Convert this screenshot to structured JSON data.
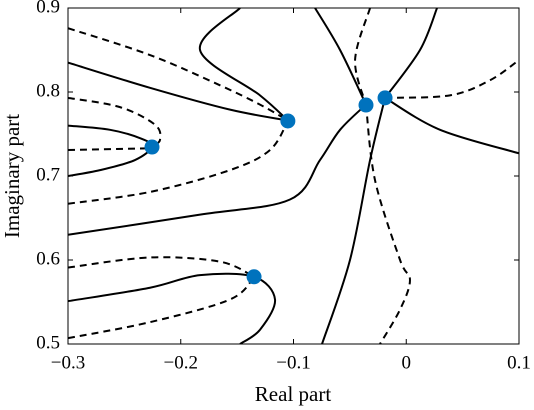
{
  "chart_data": {
    "type": "contour",
    "x_label": "Real part",
    "y_label": "Imaginary part",
    "xlim": [
      -0.3,
      0.1
    ],
    "ylim": [
      0.5,
      0.9
    ],
    "xticks": [
      {
        "value": -0.3,
        "label": "−0.3"
      },
      {
        "value": -0.2,
        "label": "−0.2"
      },
      {
        "value": -0.1,
        "label": "−0.1"
      },
      0,
      0.1
    ],
    "yticks": [
      0.5,
      0.6,
      0.7,
      0.8,
      0.9
    ],
    "line_color": "#000000",
    "curves": [
      {
        "style": "solid",
        "x": [
          -0.3,
          -0.2627,
          -0.2361,
          -0.2255,
          -0.2406,
          -0.2716,
          -0.3
        ],
        "y": [
          0.76,
          0.755,
          0.745,
          0.735,
          0.719,
          0.707,
          0.7
        ]
      },
      {
        "style": "dashed",
        "x": [
          -0.3,
          -0.2255
        ],
        "y": [
          0.731,
          0.733
        ]
      },
      {
        "style": "dashed",
        "x": [
          -0.3,
          -0.2539,
          -0.2228,
          -0.2184,
          -0.2255
        ],
        "y": [
          0.793,
          0.782,
          0.761,
          0.743,
          0.735
        ]
      },
      {
        "style": "solid",
        "x": [
          -0.3,
          -0.2273,
          -0.1563,
          -0.1049
        ],
        "y": [
          0.835,
          0.805,
          0.779,
          0.766
        ]
      },
      {
        "style": "dashed",
        "x": [
          -0.3,
          -0.2273,
          -0.1652,
          -0.1297,
          -0.1049
        ],
        "y": [
          0.876,
          0.844,
          0.808,
          0.785,
          0.766
        ]
      },
      {
        "style": "solid",
        "x": [
          -0.1474,
          -0.1829,
          -0.1297,
          -0.1049
        ],
        "y": [
          0.9,
          0.85,
          0.796,
          0.766
        ]
      },
      {
        "style": "dashed",
        "x": [
          -0.3,
          -0.2273,
          -0.1563,
          -0.1208,
          -0.1049
        ],
        "y": [
          0.667,
          0.681,
          0.707,
          0.731,
          0.766
        ]
      },
      {
        "style": "solid",
        "x": [
          -0.3,
          -0.1829,
          -0.1031,
          -0.0765,
          -0.0587,
          -0.0357
        ],
        "y": [
          0.63,
          0.654,
          0.672,
          0.719,
          0.755,
          0.785
        ]
      },
      {
        "style": "solid",
        "x": [
          -0.0809,
          -0.0587,
          -0.0357
        ],
        "y": [
          0.9,
          0.85,
          0.785
        ]
      },
      {
        "style": "dashed",
        "x": [
          -0.0321,
          -0.0454,
          -0.0357
        ],
        "y": [
          0.9,
          0.838,
          0.785
        ]
      },
      {
        "style": "dashed",
        "x": [
          -0.0357,
          -0.0277,
          -0.0055,
          0.0033,
          -0.0055,
          -0.0233
        ],
        "y": [
          0.785,
          0.695,
          0.6,
          0.576,
          0.541,
          0.5
        ]
      },
      {
        "style": "solid",
        "x": [
          0.0273,
          0.0122,
          -0.0188
        ],
        "y": [
          0.9,
          0.85,
          0.793
        ]
      },
      {
        "style": "solid",
        "x": [
          -0.0188,
          0.03,
          0.1
        ],
        "y": [
          0.793,
          0.755,
          0.727
        ]
      },
      {
        "style": "dashed",
        "x": [
          -0.0188,
          0.0388,
          0.0743,
          0.1
        ],
        "y": [
          0.793,
          0.796,
          0.814,
          0.838
        ]
      },
      {
        "style": "solid",
        "x": [
          -0.0188,
          -0.0321,
          -0.0499,
          -0.0747
        ],
        "y": [
          0.793,
          0.719,
          0.6,
          0.5
        ]
      },
      {
        "style": "solid",
        "x": [
          -0.3,
          -0.2273,
          -0.1829,
          -0.135,
          -0.1164,
          -0.1297,
          -0.1474
        ],
        "y": [
          0.551,
          0.567,
          0.582,
          0.58,
          0.553,
          0.517,
          0.5
        ]
      },
      {
        "style": "dashed",
        "x": [
          -0.3,
          -0.2273,
          -0.1652,
          -0.135
        ],
        "y": [
          0.591,
          0.603,
          0.598,
          0.58
        ]
      },
      {
        "style": "dashed",
        "x": [
          -0.3,
          -0.2273,
          -0.1563,
          -0.135
        ],
        "y": [
          0.507,
          0.526,
          0.553,
          0.58
        ]
      }
    ],
    "points": {
      "color": "#0072bd",
      "x": [
        -0.2255,
        -0.105,
        -0.0357,
        -0.0188,
        -0.135
      ],
      "y": [
        0.7345,
        0.7655,
        0.7845,
        0.793,
        0.58
      ]
    }
  }
}
